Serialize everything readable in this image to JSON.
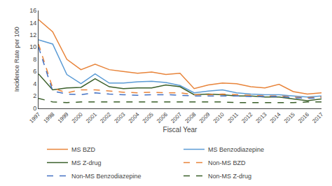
{
  "chart_data": {
    "type": "line",
    "x": [
      1997,
      1998,
      1999,
      2000,
      2001,
      2002,
      2003,
      2004,
      2005,
      2006,
      2007,
      2008,
      2009,
      2010,
      2011,
      2012,
      2013,
      2014,
      2015,
      2016,
      2017
    ],
    "series": [
      {
        "name": "MS BZD",
        "color": "#E8843A",
        "line_style": "solid",
        "values": [
          14.5,
          12.5,
          8.0,
          6.3,
          7.2,
          6.3,
          6.0,
          5.7,
          5.9,
          5.5,
          5.7,
          3.2,
          3.8,
          4.1,
          4.0,
          3.5,
          3.3,
          3.9,
          2.7,
          2.3,
          2.5
        ]
      },
      {
        "name": "MS Benzodiazepine",
        "color": "#5B9BD5",
        "line_style": "solid",
        "values": [
          11.2,
          10.5,
          5.5,
          4.0,
          5.6,
          4.1,
          4.1,
          4.3,
          4.4,
          4.2,
          3.7,
          2.5,
          2.8,
          3.0,
          2.5,
          2.3,
          2.2,
          2.2,
          2.0,
          1.8,
          2.0
        ]
      },
      {
        "name": "MS Z-drug",
        "color": "#3A5F2A",
        "line_style": "solid",
        "values": [
          5.6,
          3.0,
          3.3,
          3.4,
          4.8,
          3.5,
          3.2,
          3.3,
          3.3,
          3.8,
          3.5,
          2.2,
          2.3,
          2.2,
          2.0,
          2.0,
          1.8,
          1.8,
          1.5,
          1.2,
          1.5
        ]
      },
      {
        "name": "Non-MS BZD",
        "color": "#E8843A",
        "line_style": "dashed",
        "values": [
          10.5,
          3.3,
          2.5,
          3.0,
          3.0,
          2.8,
          2.6,
          2.5,
          2.6,
          2.5,
          2.5,
          2.2,
          2.2,
          2.3,
          2.2,
          2.1,
          2.0,
          2.0,
          1.8,
          1.7,
          1.8
        ]
      },
      {
        "name": "Non-MS Benzodiazepine",
        "color": "#4472C4",
        "line_style": "dashed",
        "values": [
          10.0,
          2.8,
          2.3,
          2.2,
          2.5,
          2.3,
          2.2,
          2.1,
          2.2,
          2.2,
          2.1,
          2.0,
          2.0,
          2.0,
          2.0,
          1.9,
          1.9,
          1.9,
          1.7,
          1.6,
          1.7
        ]
      },
      {
        "name": "Non-MS Z-drug",
        "color": "#3A5F2A",
        "line_style": "dashed",
        "values": [
          1.6,
          1.0,
          0.9,
          1.0,
          1.0,
          1.0,
          1.0,
          1.0,
          1.0,
          1.0,
          1.0,
          1.0,
          1.0,
          1.0,
          0.9,
          0.9,
          0.9,
          0.9,
          0.9,
          1.0,
          1.0
        ]
      }
    ],
    "x_label": "Fiscal Year",
    "y_label": "Incidence Rate per 100",
    "xlim": [
      1997,
      2017
    ],
    "xticks": [
      1997,
      1998,
      1999,
      2000,
      2001,
      2002,
      2003,
      2004,
      2005,
      2006,
      2007,
      2008,
      2009,
      2010,
      2011,
      2012,
      2013,
      2014,
      2015,
      2016,
      2017
    ],
    "ylim": [
      0,
      16
    ],
    "yticks": [
      0,
      2,
      4,
      6,
      8,
      10,
      12,
      14,
      16
    ],
    "grid": false,
    "legend": "bottom"
  }
}
